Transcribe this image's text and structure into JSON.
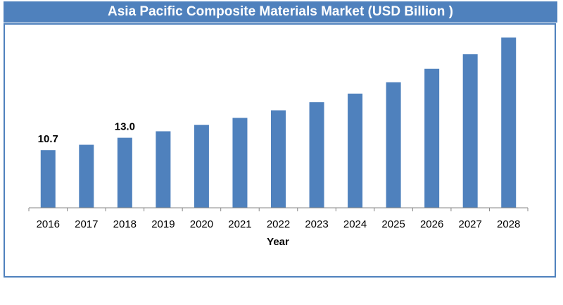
{
  "chart_data": {
    "type": "bar",
    "title": "Asia Pacific Composite Materials Market (USD Billion )",
    "xlabel": "Year",
    "ylabel": "",
    "categories": [
      "2016",
      "2017",
      "2018",
      "2019",
      "2020",
      "2021",
      "2022",
      "2023",
      "2024",
      "2025",
      "2026",
      "2027",
      "2028"
    ],
    "values": [
      10.7,
      11.7,
      13.0,
      14.2,
      15.4,
      16.7,
      18.1,
      19.6,
      21.2,
      23.3,
      25.8,
      28.5,
      31.6
    ],
    "data_labels": [
      "10.7",
      "",
      "13.0",
      "",
      "",
      "",
      "",
      "",
      "",
      "",
      "",
      "",
      ""
    ],
    "ylim": [
      0,
      34
    ],
    "grid": false,
    "legend": "none",
    "colors": {
      "bar": "#4f81bd",
      "title_bg": "#4f81bd",
      "title_text": "#ffffff"
    }
  }
}
